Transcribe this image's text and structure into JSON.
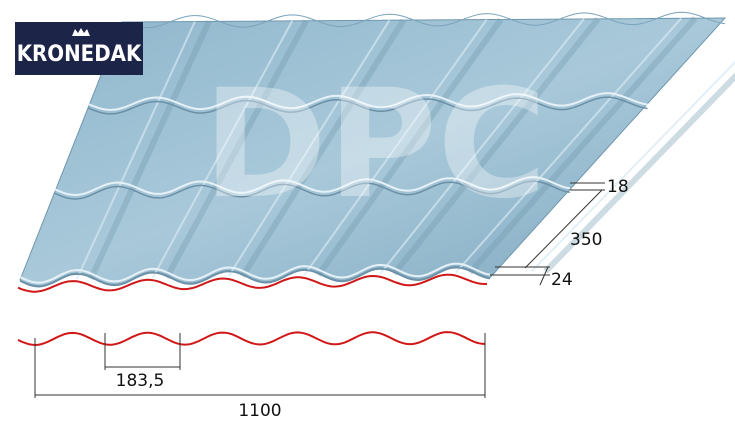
{
  "logo": {
    "text": "KRONEDAK"
  },
  "watermark": "DPC",
  "dimensions": {
    "step_height": "18",
    "step_length": "350",
    "profile_height": "24",
    "wave_pitch": "183,5",
    "useful_width": "1100"
  }
}
